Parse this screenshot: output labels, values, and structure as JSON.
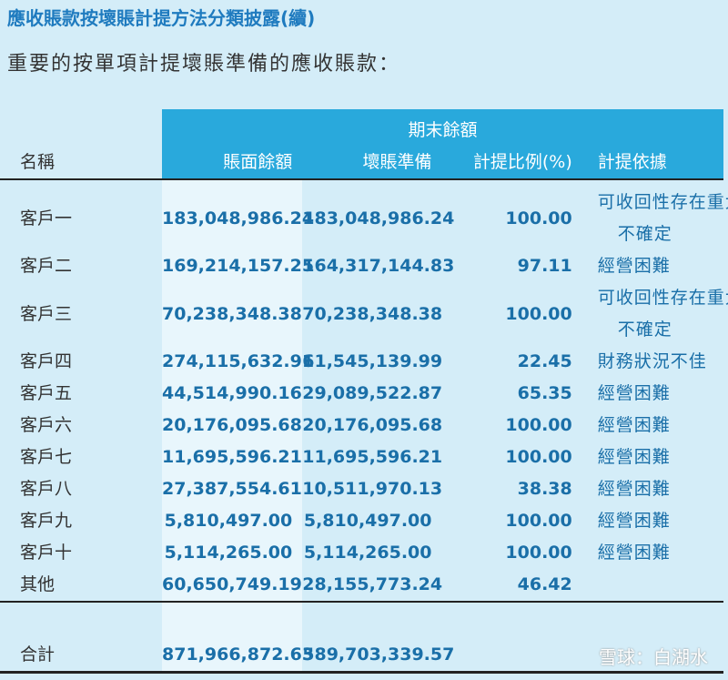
{
  "header": {
    "title": "應收賬款按壞賬計提方法分類披露(續)",
    "subtitle": "重要的按單項計提壞賬準備的應收賬款："
  },
  "table": {
    "group_header": "期末餘額",
    "columns": [
      "名稱",
      "賬面餘額",
      "壞賬準備",
      "計提比例(%)",
      "計提依據"
    ],
    "rows": [
      [
        "客戶一",
        "183,048,986.24",
        "183,048,986.24",
        "100.00",
        "可收回性存在重大不確定"
      ],
      [
        "客戶二",
        "169,214,157.25",
        "164,317,144.83",
        "97.11",
        "經營困難"
      ],
      [
        "客戶三",
        "70,238,348.38",
        "70,238,348.38",
        "100.00",
        "可收回性存在重大不確定"
      ],
      [
        "客戶四",
        "274,115,632.91",
        "61,545,139.99",
        "22.45",
        "財務狀況不佳"
      ],
      [
        "客戶五",
        "44,514,990.16",
        "29,089,522.87",
        "65.35",
        "經營困難"
      ],
      [
        "客戶六",
        "20,176,095.68",
        "20,176,095.68",
        "100.00",
        "經營困難"
      ],
      [
        "客戶七",
        "11,695,596.21",
        "11,695,596.21",
        "100.00",
        "經營困難"
      ],
      [
        "客戶八",
        "27,387,554.61",
        "10,511,970.13",
        "38.38",
        "經營困難"
      ],
      [
        "客戶九",
        "5,810,497.00",
        "5,810,497.00",
        "100.00",
        "經營困難"
      ],
      [
        "客戶十",
        "5,114,265.00",
        "5,114,265.00",
        "100.00",
        "經營困難"
      ],
      [
        "其他",
        "60,650,749.19",
        "28,155,773.24",
        "46.42"
      ]
    ],
    "total": [
      "合計",
      "871,966,872.63",
      "589,703,339.57"
    ]
  },
  "watermark": "雪球：白湖水"
}
